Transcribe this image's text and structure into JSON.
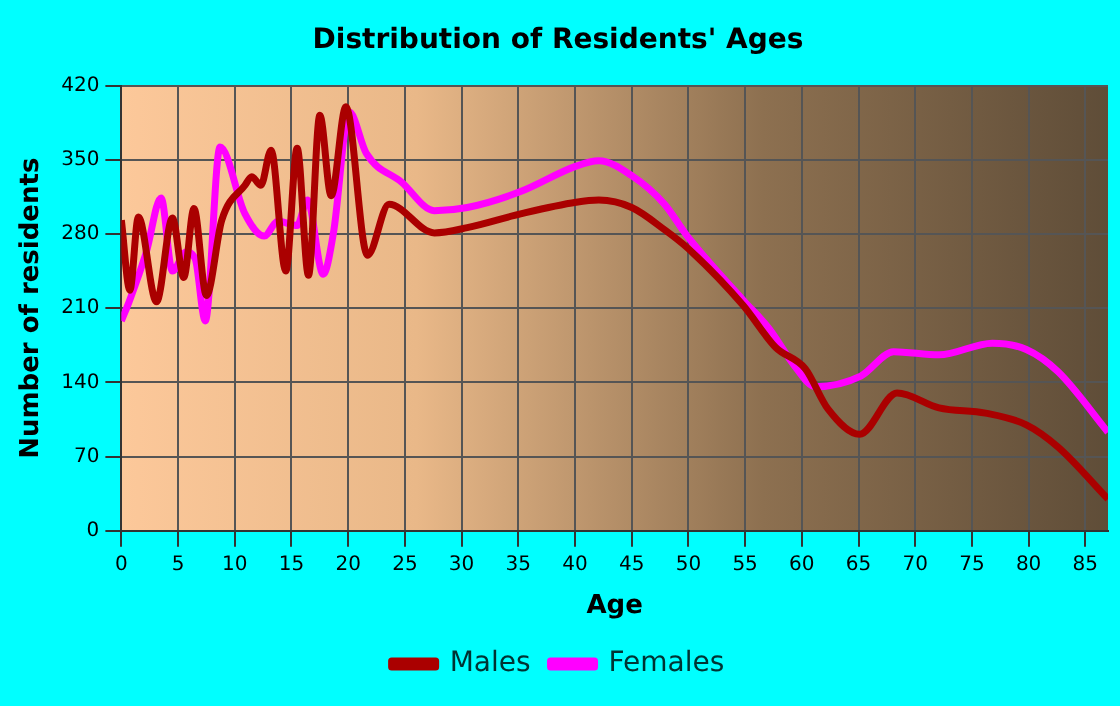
{
  "chart_data": {
    "type": "line",
    "title": "Distribution of Residents' Ages",
    "xlabel": "Age",
    "ylabel": "Number of residents",
    "xlim": [
      0,
      87
    ],
    "xticks": [
      0,
      5,
      10,
      15,
      20,
      25,
      30,
      35,
      40,
      45,
      50,
      55,
      60,
      65,
      70,
      75,
      80,
      85
    ],
    "ylim": [
      0,
      420
    ],
    "yticks": [
      0,
      70,
      140,
      210,
      280,
      350,
      420
    ],
    "grid": true,
    "legend": "bottom",
    "marker": "none",
    "line_style": "solid",
    "series": [
      {
        "name": "Males",
        "color": "#aa0000",
        "x": [
          0,
          0.75,
          1.5,
          3.1,
          4.5,
          5.5,
          6.4,
          7.5,
          8.85,
          10.9,
          11.5,
          12.3,
          13.2,
          14.5,
          15.5,
          16.5,
          17.5,
          18.5,
          19.8,
          21.7,
          23.6,
          27.6,
          30.5,
          35.2,
          40.1,
          42.1,
          45,
          47.9,
          49.9,
          54.8,
          57.7,
          60.3,
          62.3,
          65.1,
          68.4,
          72.1,
          76.2,
          79.8,
          82.6,
          87
        ],
        "values": [
          293,
          227,
          296,
          216,
          295,
          239,
          304,
          222,
          293,
          326,
          334,
          326,
          359,
          245,
          361,
          241,
          392,
          316,
          400,
          260,
          308,
          281,
          286,
          299,
          310,
          312,
          305,
          284,
          267,
          213,
          173,
          153,
          115,
          91,
          130,
          116,
          111,
          100,
          79,
          30
        ]
      },
      {
        "name": "Females",
        "color": "#ff00ff",
        "x": [
          0,
          0.75,
          2.2,
          3.5,
          4.5,
          5.7,
          6.5,
          7.4,
          8.7,
          10.9,
          12.6,
          13.8,
          15.5,
          16.4,
          17.8,
          18.7,
          20.1,
          21.6,
          24.7,
          27.6,
          30.5,
          35.2,
          40.1,
          42.1,
          45,
          47.9,
          49.9,
          54.8,
          57.1,
          59.4,
          61.2,
          65.2,
          68.1,
          72.1,
          76.8,
          79.8,
          82.6,
          87
        ],
        "values": [
          198,
          218,
          263,
          314,
          245,
          263,
          257,
          198,
          362,
          299,
          278,
          292,
          288,
          312,
          242,
          281,
          395,
          356,
          329,
          302,
          305,
          320,
          344,
          349,
          335,
          308,
          278,
          218,
          191,
          155,
          136,
          146,
          169,
          166,
          177,
          171,
          150,
          93
        ]
      }
    ]
  }
}
